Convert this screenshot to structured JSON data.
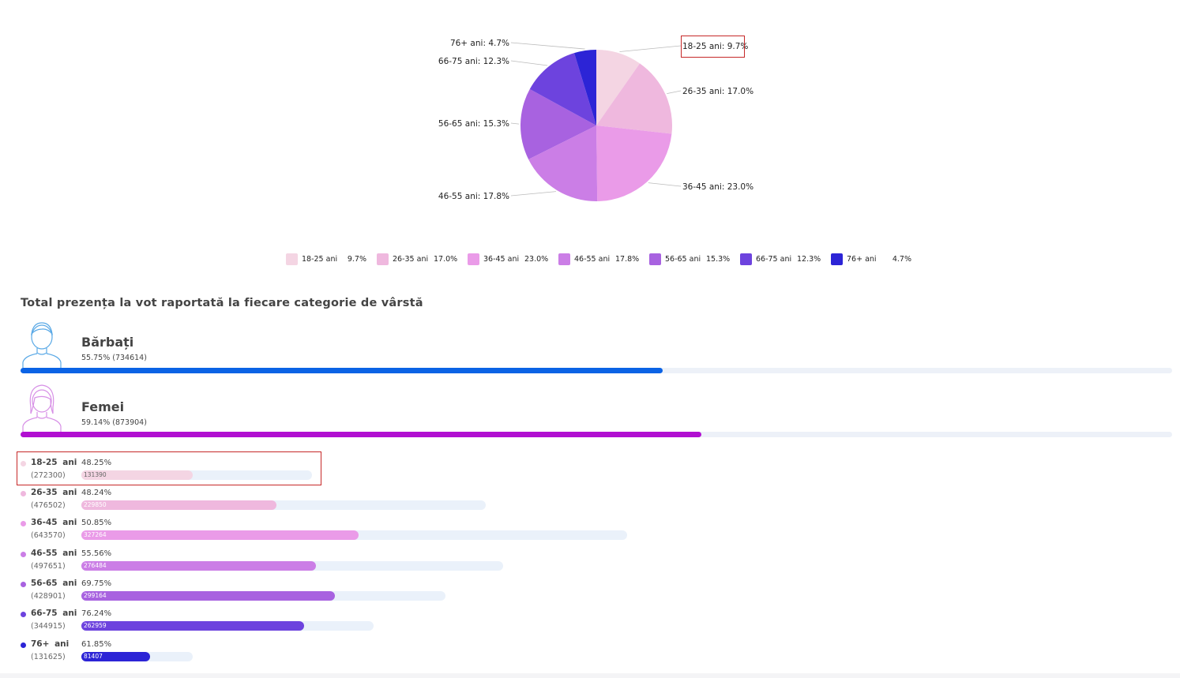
{
  "chart_data": [
    {
      "type": "pie",
      "slices": [
        {
          "label": "18-25 ani",
          "value": 9.7,
          "color": "#f4d5e3",
          "callout": "18-25 ani: 9.7%"
        },
        {
          "label": "26-35 ani",
          "value": 17.0,
          "color": "#efb8de",
          "callout": "26-35 ani: 17.0%"
        },
        {
          "label": "36-45 ani",
          "value": 23.0,
          "color": "#ea9be8",
          "callout": "36-45 ani: 23.0%"
        },
        {
          "label": "46-55 ani",
          "value": 17.8,
          "color": "#cb7ee6",
          "callout": "46-55 ani: 17.8%"
        },
        {
          "label": "56-65 ani",
          "value": 15.3,
          "color": "#a862e0",
          "callout": "56-65 ani: 15.3%"
        },
        {
          "label": "66-75 ani",
          "value": 12.3,
          "color": "#6d43de",
          "callout": "66-75 ani: 12.3%"
        },
        {
          "label": "76+ ani",
          "value": 4.7,
          "color": "#2c24d6",
          "callout": "76+ ani: 4.7%"
        }
      ],
      "legend": [
        {
          "label": "18-25 ani",
          "value": "9.7%"
        },
        {
          "label": "26-35 ani",
          "value": "17.0%"
        },
        {
          "label": "36-45 ani",
          "value": "23.0%"
        },
        {
          "label": "46-55 ani",
          "value": "17.8%"
        },
        {
          "label": "56-65 ani",
          "value": "15.3%"
        },
        {
          "label": "66-75 ani",
          "value": "12.3%"
        },
        {
          "label": "76+ ani",
          "value": "4.7%"
        }
      ],
      "legend_position": "bottom",
      "highlighted_slice": "18-25 ani"
    },
    {
      "type": "bar",
      "title": "Total prezența la vot raportată la fiecare categorie de vârstă",
      "gender": [
        {
          "name": "Bărbați",
          "stat": "55.75% (734614)",
          "percent": 55.75,
          "color": "#0b63e5",
          "icon": "male-avatar-icon"
        },
        {
          "name": "Femei",
          "stat": "59.14% (873904)",
          "percent": 59.14,
          "color": "#b10fd1",
          "icon": "female-avatar-icon"
        }
      ],
      "age_groups": [
        {
          "label": "18-25  ani",
          "total": "(272300)",
          "total_value": 272300,
          "percent": "48.25%",
          "count": "131390",
          "count_value": 131390,
          "color": "#f4d5e3",
          "highlighted": true
        },
        {
          "label": "26-35  ani",
          "total": "(476502)",
          "total_value": 476502,
          "percent": "48.24%",
          "count": "229850",
          "count_value": 229850,
          "color": "#efb8de"
        },
        {
          "label": "36-45  ani",
          "total": "(643570)",
          "total_value": 643570,
          "percent": "50.85%",
          "count": "327264",
          "count_value": 327264,
          "color": "#ea9be8"
        },
        {
          "label": "46-55  ani",
          "total": "(497651)",
          "total_value": 497651,
          "percent": "55.56%",
          "count": "276484",
          "count_value": 276484,
          "color": "#cb7ee6"
        },
        {
          "label": "56-65  ani",
          "total": "(428901)",
          "total_value": 428901,
          "percent": "69.75%",
          "count": "299164",
          "count_value": 299164,
          "color": "#a862e0"
        },
        {
          "label": "66-75  ani",
          "total": "(344915)",
          "total_value": 344915,
          "percent": "76.24%",
          "count": "262959",
          "count_value": 262959,
          "color": "#6d43de"
        },
        {
          "label": "76+  ani",
          "total": "(131625)",
          "total_value": 131625,
          "percent": "61.85%",
          "count": "81407",
          "count_value": 81407,
          "color": "#2c24d6"
        }
      ]
    }
  ]
}
